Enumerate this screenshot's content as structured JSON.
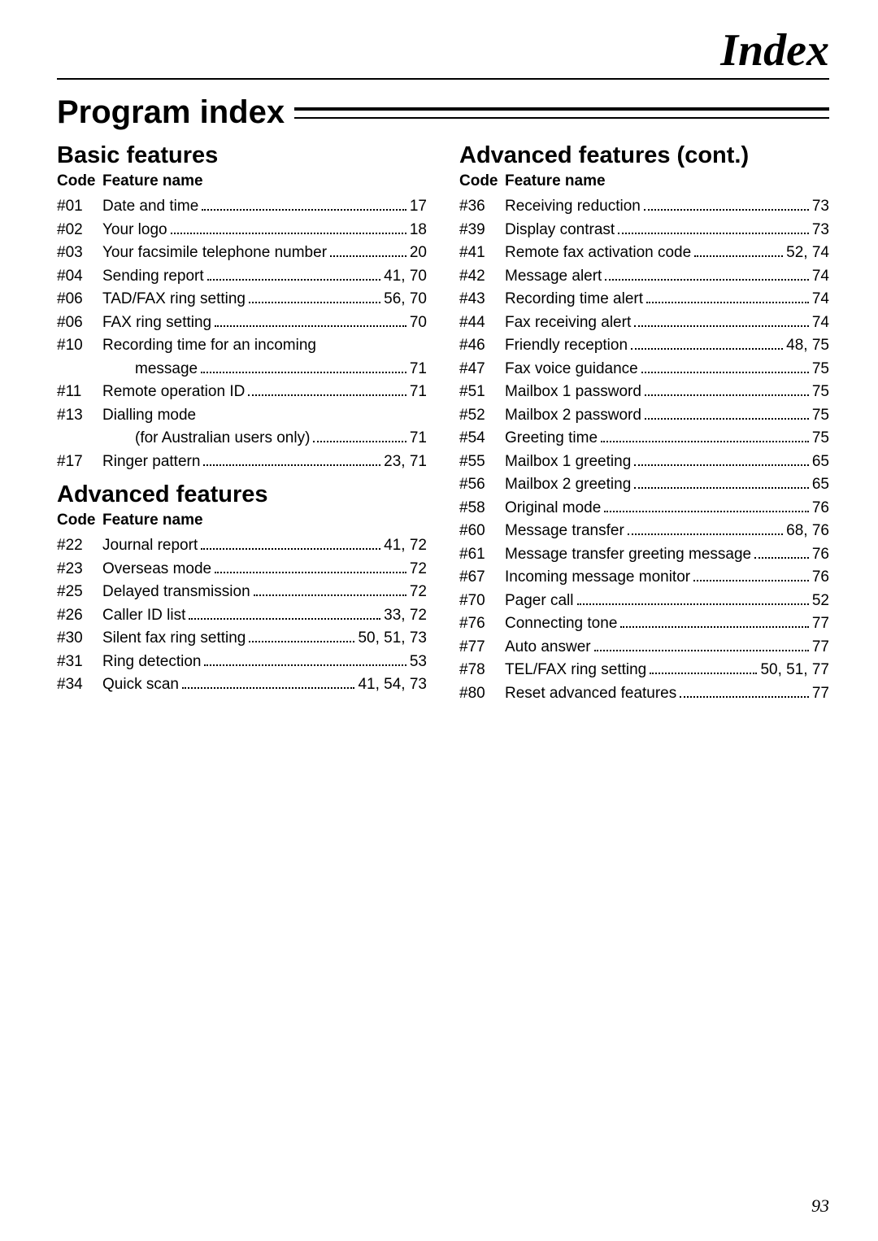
{
  "header": {
    "title": "Index"
  },
  "section_title": "Program index",
  "page_number": "93",
  "columns": {
    "left": [
      {
        "heading": "Basic features",
        "header_row": {
          "code": "Code",
          "name": "Feature name"
        },
        "entries": [
          {
            "code": "#01",
            "lines": [
              {
                "name": "Date and time",
                "page": "17"
              }
            ]
          },
          {
            "code": "#02",
            "lines": [
              {
                "name": "Your logo",
                "page": "18"
              }
            ]
          },
          {
            "code": "#03",
            "lines": [
              {
                "name": "Your facsimile telephone number",
                "page": "20"
              }
            ]
          },
          {
            "code": "#04",
            "lines": [
              {
                "name": "Sending report",
                "page": "41, 70"
              }
            ]
          },
          {
            "code": "#06",
            "lines": [
              {
                "name": "TAD/FAX ring setting",
                "page": "56, 70"
              }
            ]
          },
          {
            "code": "#06",
            "lines": [
              {
                "name": "FAX ring setting",
                "page": "70"
              }
            ]
          },
          {
            "code": "#10",
            "lines": [
              {
                "name": "Recording time for an incoming",
                "page": ""
              },
              {
                "name": "message",
                "page": "71",
                "indent": true
              }
            ]
          },
          {
            "code": "#11",
            "lines": [
              {
                "name": "Remote operation ID",
                "page": "71"
              }
            ]
          },
          {
            "code": "#13",
            "lines": [
              {
                "name": "Dialling mode",
                "page": ""
              },
              {
                "name": "(for Australian users only)",
                "page": "71",
                "indent": true
              }
            ]
          },
          {
            "code": "#17",
            "lines": [
              {
                "name": "Ringer pattern",
                "page": "23, 71"
              }
            ]
          }
        ]
      },
      {
        "heading": "Advanced features",
        "header_row": {
          "code": "Code",
          "name": "Feature name"
        },
        "entries": [
          {
            "code": "#22",
            "lines": [
              {
                "name": "Journal report",
                "page": "41, 72"
              }
            ]
          },
          {
            "code": "#23",
            "lines": [
              {
                "name": "Overseas mode",
                "page": "72"
              }
            ]
          },
          {
            "code": "#25",
            "lines": [
              {
                "name": "Delayed transmission",
                "page": "72"
              }
            ]
          },
          {
            "code": "#26",
            "lines": [
              {
                "name": "Caller ID list",
                "page": "33, 72"
              }
            ]
          },
          {
            "code": "#30",
            "lines": [
              {
                "name": "Silent fax ring setting",
                "page": "50, 51, 73"
              }
            ]
          },
          {
            "code": "#31",
            "lines": [
              {
                "name": "Ring detection",
                "page": "53"
              }
            ]
          },
          {
            "code": "#34",
            "lines": [
              {
                "name": "Quick scan",
                "page": "41, 54, 73"
              }
            ]
          }
        ]
      }
    ],
    "right": [
      {
        "heading": "Advanced features (cont.)",
        "header_row": {
          "code": "Code",
          "name": "Feature name"
        },
        "entries": [
          {
            "code": "#36",
            "lines": [
              {
                "name": "Receiving reduction",
                "page": "73"
              }
            ]
          },
          {
            "code": "#39",
            "lines": [
              {
                "name": "Display contrast",
                "page": "73"
              }
            ]
          },
          {
            "code": "#41",
            "lines": [
              {
                "name": "Remote fax activation code",
                "page": "52, 74"
              }
            ]
          },
          {
            "code": "#42",
            "lines": [
              {
                "name": "Message alert",
                "page": "74"
              }
            ]
          },
          {
            "code": "#43",
            "lines": [
              {
                "name": "Recording time alert",
                "page": "74"
              }
            ]
          },
          {
            "code": "#44",
            "lines": [
              {
                "name": "Fax receiving alert",
                "page": "74"
              }
            ]
          },
          {
            "code": "#46",
            "lines": [
              {
                "name": "Friendly reception",
                "page": "48, 75"
              }
            ]
          },
          {
            "code": "#47",
            "lines": [
              {
                "name": "Fax voice guidance",
                "page": "75"
              }
            ]
          },
          {
            "code": "#51",
            "lines": [
              {
                "name": "Mailbox 1 password",
                "page": "75"
              }
            ]
          },
          {
            "code": "#52",
            "lines": [
              {
                "name": "Mailbox 2 password",
                "page": "75"
              }
            ]
          },
          {
            "code": "#54",
            "lines": [
              {
                "name": "Greeting time",
                "page": "75"
              }
            ]
          },
          {
            "code": "#55",
            "lines": [
              {
                "name": "Mailbox 1 greeting",
                "page": "65"
              }
            ]
          },
          {
            "code": "#56",
            "lines": [
              {
                "name": "Mailbox 2 greeting",
                "page": "65"
              }
            ]
          },
          {
            "code": "#58",
            "lines": [
              {
                "name": "Original mode",
                "page": "76"
              }
            ]
          },
          {
            "code": "#60",
            "lines": [
              {
                "name": "Message transfer",
                "page": "68, 76"
              }
            ]
          },
          {
            "code": "#61",
            "lines": [
              {
                "name": "Message transfer greeting message",
                "page": "76"
              }
            ]
          },
          {
            "code": "#67",
            "lines": [
              {
                "name": "Incoming message monitor",
                "page": "76"
              }
            ]
          },
          {
            "code": "#70",
            "lines": [
              {
                "name": "Pager call",
                "page": "52"
              }
            ]
          },
          {
            "code": "#76",
            "lines": [
              {
                "name": "Connecting tone",
                "page": "77"
              }
            ]
          },
          {
            "code": "#77",
            "lines": [
              {
                "name": "Auto answer",
                "page": "77"
              }
            ]
          },
          {
            "code": "#78",
            "lines": [
              {
                "name": "TEL/FAX ring setting",
                "page": "50, 51, 77"
              }
            ]
          },
          {
            "code": "#80",
            "lines": [
              {
                "name": "Reset advanced features",
                "page": "77"
              }
            ]
          }
        ]
      }
    ]
  }
}
